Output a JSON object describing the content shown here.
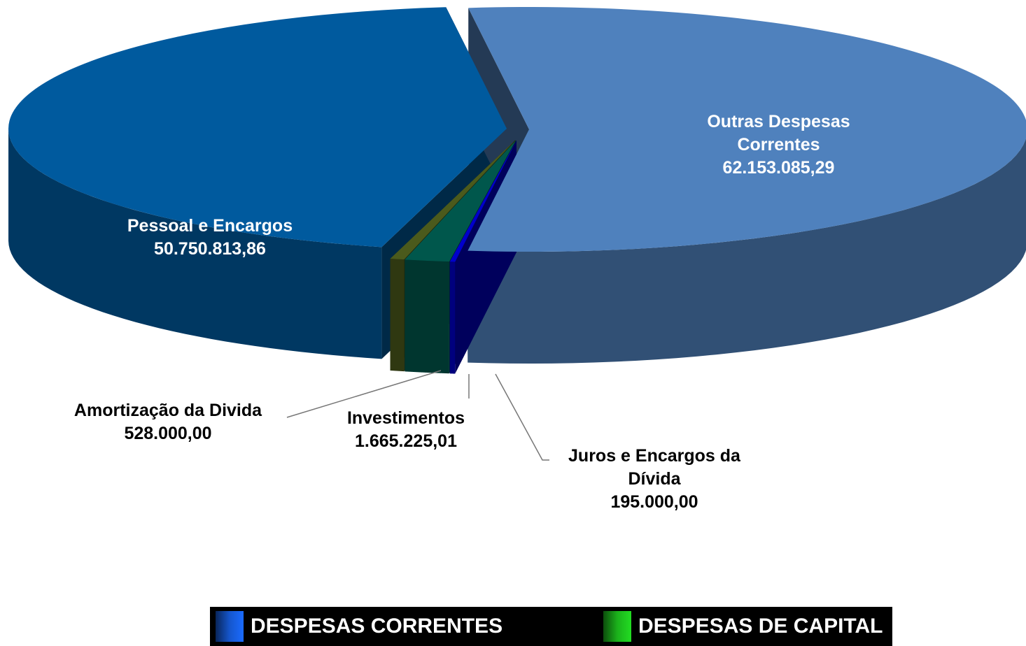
{
  "chart_data": {
    "type": "pie3d",
    "categories": [
      "Outras Despesas Correntes",
      "Juros e Encargos da Dívida",
      "Investimentos",
      "Amortização da Divida",
      "Pessoal e Encargos"
    ],
    "values": [
      62153085.29,
      195000,
      1665225.01,
      528000,
      50750813.86
    ],
    "value_labels": [
      "62.153.085,29",
      "195.000,00",
      "1.665.225,01",
      "528.000,00",
      "50.750.813,86"
    ],
    "colors": [
      "#4f81bd",
      "#0000cc",
      "#00574c",
      "#4b5a1c",
      "#005a9e"
    ],
    "legend": [
      {
        "label": "DESPESAS CORRENTES",
        "color": "#1a6bff"
      },
      {
        "label": "DESPESAS DE CAPITAL",
        "color": "#22dd22"
      }
    ]
  }
}
